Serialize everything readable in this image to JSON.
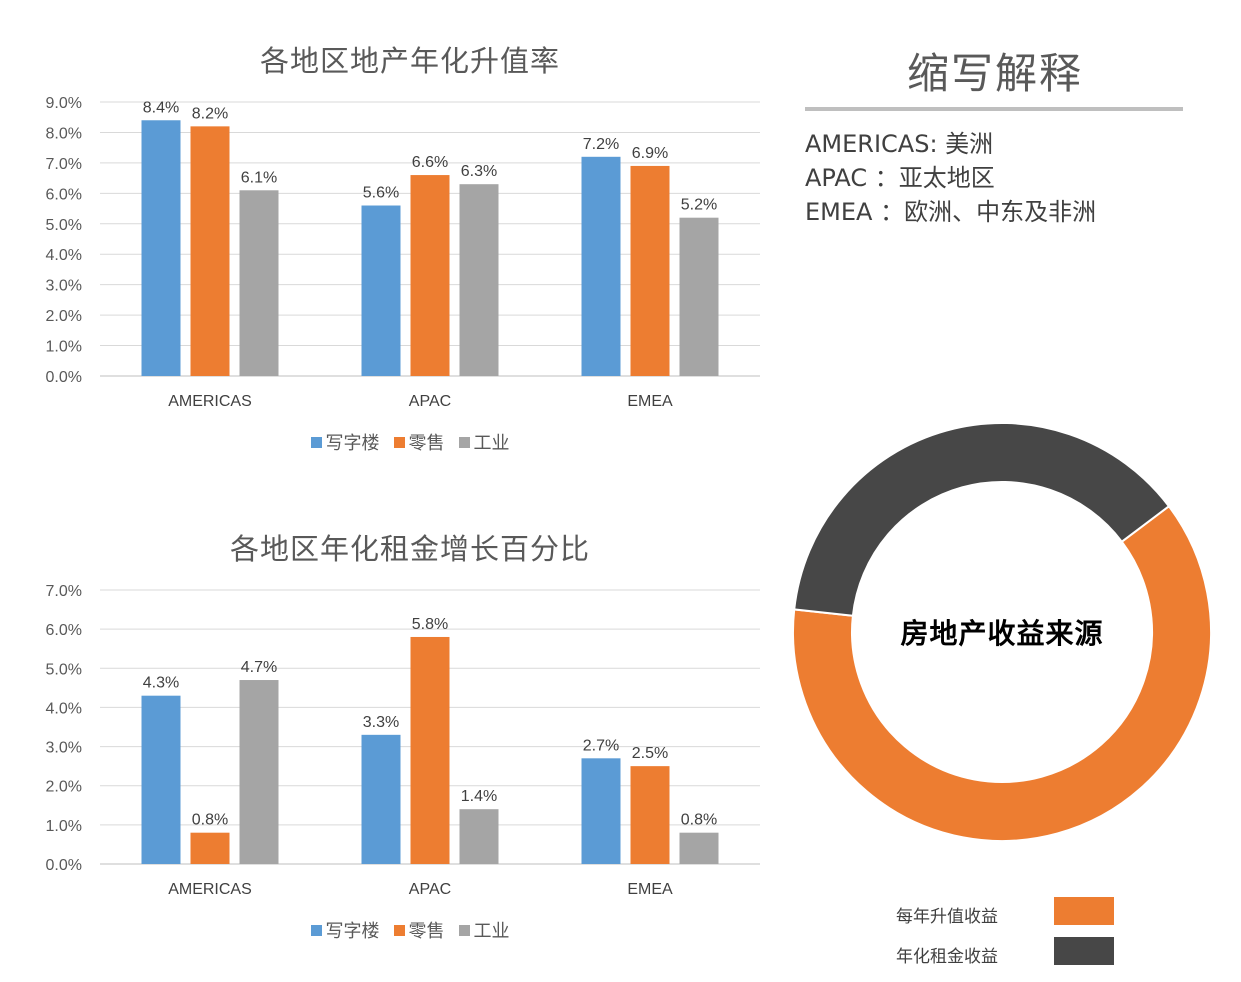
{
  "colors": {
    "office": "#5B9BD5",
    "retail": "#ED7D31",
    "industrial": "#A5A5A5",
    "appreciation": "#ED7D31",
    "rental": "#474747"
  },
  "chart_data": [
    {
      "type": "bar",
      "title": "各地区地产年化升值率",
      "categories": [
        "AMERICAS",
        "APAC",
        "EMEA"
      ],
      "series": [
        {
          "name": "写字楼",
          "values": [
            8.4,
            5.6,
            7.2
          ]
        },
        {
          "name": "零售",
          "values": [
            8.2,
            6.6,
            6.9
          ]
        },
        {
          "name": "工业",
          "values": [
            6.1,
            6.3,
            5.2
          ]
        }
      ],
      "value_labels": [
        [
          "8.4%",
          "5.6%",
          "7.2%"
        ],
        [
          "8.2%",
          "6.6%",
          "6.9%"
        ],
        [
          "6.1%",
          "6.3%",
          "5.2%"
        ]
      ],
      "yticks": [
        "0.0%",
        "1.0%",
        "2.0%",
        "3.0%",
        "4.0%",
        "5.0%",
        "6.0%",
        "7.0%",
        "8.0%",
        "9.0%"
      ],
      "ylim": [
        0,
        9
      ],
      "grid": true,
      "legend_position": "bottom"
    },
    {
      "type": "bar",
      "title": "各地区年化租金增长百分比",
      "categories": [
        "AMERICAS",
        "APAC",
        "EMEA"
      ],
      "series": [
        {
          "name": "写字楼",
          "values": [
            4.3,
            3.3,
            2.7
          ]
        },
        {
          "name": "零售",
          "values": [
            0.8,
            5.8,
            2.5
          ]
        },
        {
          "name": "工业",
          "values": [
            4.7,
            1.4,
            0.8
          ]
        }
      ],
      "value_labels": [
        [
          "4.3%",
          "3.3%",
          "2.7%"
        ],
        [
          "0.8%",
          "5.8%",
          "2.5%"
        ],
        [
          "4.7%",
          "1.4%",
          "0.8%"
        ]
      ],
      "yticks": [
        "0.0%",
        "1.0%",
        "2.0%",
        "3.0%",
        "4.0%",
        "5.0%",
        "6.0%",
        "7.0%"
      ],
      "ylim": [
        0,
        7
      ],
      "grid": true,
      "legend_position": "bottom"
    },
    {
      "type": "pie",
      "variant": "donut",
      "center_label": "房地产收益来源",
      "slices": [
        {
          "name": "每年升值收益",
          "value": 62
        },
        {
          "name": "年化租金收益",
          "value": 38
        }
      ],
      "legend_position": "bottom-right"
    }
  ],
  "abbreviations": {
    "title": "缩写解释",
    "lines": [
      "AMERICAS: 美洲",
      "APAC ：亚太地区",
      "EMEA ：欧洲、中东及非洲"
    ]
  }
}
